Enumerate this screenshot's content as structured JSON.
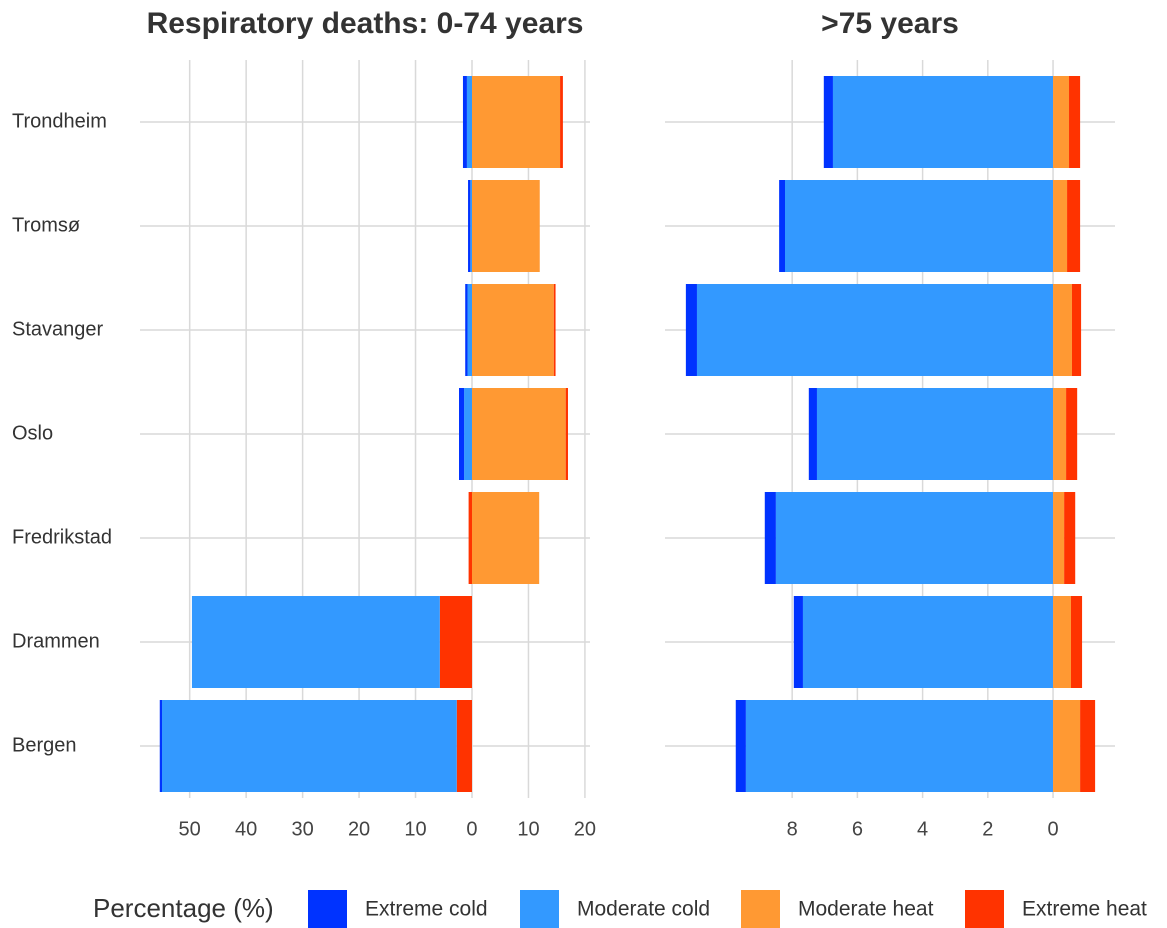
{
  "chart_data": [
    {
      "type": "bar",
      "title": "Respiratory deaths: 0-74 years",
      "categories": [
        "Trondheim",
        "Tromsø",
        "Stavanger",
        "Oslo",
        "Fredrikstad",
        "Drammen",
        "Bergen"
      ],
      "legend_title": "Percentage (%)",
      "series": [
        {
          "name": "Extreme cold",
          "color": "#0033ff",
          "values": [
            -0.7,
            -0.4,
            -0.4,
            -0.9,
            0,
            0,
            -0.4
          ]
        },
        {
          "name": "Moderate cold",
          "color": "#3399ff",
          "values": [
            -0.9,
            -0.3,
            -0.8,
            -1.4,
            0,
            -43.9,
            -52.2
          ]
        },
        {
          "name": "Moderate heat",
          "color": "#ff9933",
          "values": [
            15.6,
            12.0,
            14.5,
            16.6,
            11.9,
            0,
            0
          ]
        },
        {
          "name": "Extreme heat",
          "color": "#ff3300",
          "values": [
            0.5,
            0,
            0.3,
            0.4,
            -0.6,
            -5.7,
            -2.7
          ]
        }
      ],
      "xlim": [
        -58.8,
        20.9
      ],
      "xticks": [
        {
          "value": -50,
          "label": "50"
        },
        {
          "value": -40,
          "label": "40"
        },
        {
          "value": -30,
          "label": "30"
        },
        {
          "value": -20,
          "label": "20"
        },
        {
          "value": -10,
          "label": "10"
        },
        0,
        10,
        20
      ],
      "grid": true
    },
    {
      "type": "bar",
      "title": ">75 years",
      "series": [
        {
          "color": "#0033ff",
          "values": [
            -0.28,
            -0.18,
            -0.34,
            -0.25,
            -0.34,
            -0.28,
            -0.31
          ]
        },
        {
          "color": "#3399ff",
          "values": [
            -6.75,
            -8.22,
            -10.92,
            -7.24,
            -8.5,
            -7.67,
            -9.42
          ]
        },
        {
          "color": "#ff9933",
          "values": [
            0.49,
            0.43,
            0.58,
            0.4,
            0.34,
            0.55,
            0.83
          ]
        },
        {
          "color": "#ff3300",
          "values": [
            0.34,
            0.4,
            0.28,
            0.34,
            0.34,
            0.34,
            0.46
          ]
        }
      ],
      "xlim": [
        -11.9,
        1.9
      ],
      "xticks": [
        {
          "value": -8,
          "label": "8"
        },
        {
          "value": -6,
          "label": "6"
        },
        {
          "value": -4,
          "label": "4"
        },
        {
          "value": -2,
          "label": "2"
        },
        0
      ],
      "grid": true
    }
  ]
}
